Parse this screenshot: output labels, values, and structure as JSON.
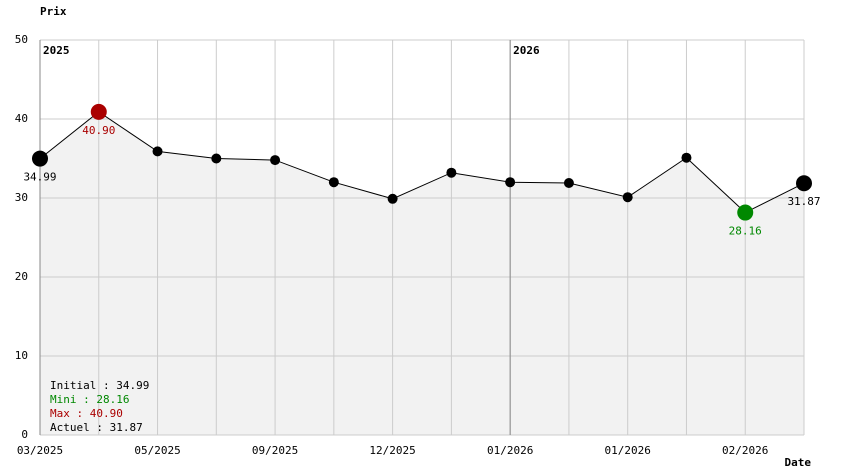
{
  "chart_data": {
    "type": "line",
    "y_label": "Prix",
    "x_label": "Date",
    "categories": [
      "03/2025",
      null,
      "05/2025",
      null,
      "09/2025",
      null,
      "12/2025",
      null,
      "01/2026",
      null,
      "01/2026",
      null,
      "02/2026",
      null
    ],
    "series": [
      {
        "name": "Prix",
        "color": "#000000",
        "values": [
          34.99,
          40.9,
          35.9,
          35.0,
          34.8,
          32.0,
          29.9,
          33.2,
          32.0,
          31.9,
          30.1,
          35.1,
          28.16,
          31.87
        ],
        "value_labels": [
          "34.99",
          "40.90",
          null,
          null,
          null,
          null,
          null,
          null,
          null,
          null,
          null,
          null,
          "28.16",
          "31.87"
        ]
      }
    ],
    "max_color": "#aa0000",
    "min_color": "#008800",
    "area_color": "#f2f2f2",
    "ylim": [
      0,
      50
    ],
    "yticks": [
      0,
      10,
      20,
      30,
      40,
      50
    ],
    "grid": true,
    "year_markers": [
      {
        "label": "2025",
        "at": "03/2025"
      },
      {
        "label": "2026",
        "at": "01/2026"
      }
    ],
    "summary": [
      {
        "text": "Initial : 34.99",
        "color": "#000000"
      },
      {
        "text": "Mini : 28.16",
        "color": "#008800"
      },
      {
        "text": "Max : 40.90",
        "color": "#aa0000"
      },
      {
        "text": "Actuel : 31.87",
        "color": "#000000"
      }
    ]
  }
}
